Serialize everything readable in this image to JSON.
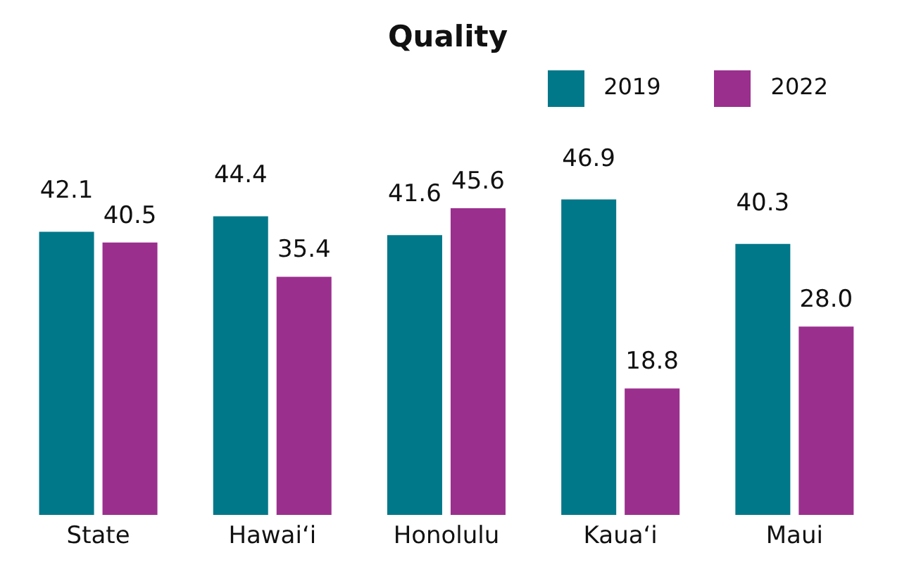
{
  "chart_data": {
    "type": "bar",
    "title": "Quality",
    "categories": [
      "State",
      "Hawaiʻi",
      "Honolulu",
      "Kauaʻi",
      "Maui"
    ],
    "series": [
      {
        "name": "2019",
        "color": "#00788a",
        "values": [
          42.1,
          44.4,
          41.6,
          46.9,
          40.3
        ],
        "value_labels": [
          "42.1",
          "44.4",
          "41.6",
          "46.9",
          "40.3"
        ]
      },
      {
        "name": "2022",
        "color": "#9b2f8e",
        "values": [
          40.5,
          35.4,
          45.6,
          18.8,
          28.0
        ],
        "value_labels": [
          "40.5",
          "35.4",
          "45.6",
          "18.8",
          "28.0"
        ]
      }
    ],
    "legend": "top right"
  }
}
